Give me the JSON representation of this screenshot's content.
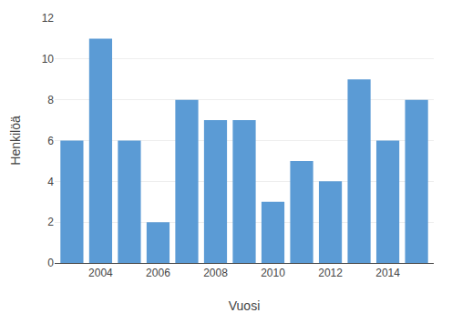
{
  "chart_data": {
    "type": "bar",
    "x": [
      2003,
      2004,
      2005,
      2006,
      2007,
      2008,
      2009,
      2010,
      2011,
      2012,
      2013,
      2014,
      2015
    ],
    "values": [
      6,
      11,
      6,
      2,
      8,
      7,
      7,
      3,
      5,
      4,
      9,
      6,
      8
    ],
    "color": "#5B9BD5",
    "xlabel": "Vuosi",
    "ylabel": "Henkilöä",
    "xlim": [
      2002.4,
      2015.6
    ],
    "xticks": [
      2004,
      2006,
      2008,
      2010,
      2012,
      2014
    ],
    "ylim": [
      0,
      12
    ],
    "yticks": [
      0,
      2,
      4,
      6,
      8,
      10,
      12
    ],
    "grid": true
  }
}
